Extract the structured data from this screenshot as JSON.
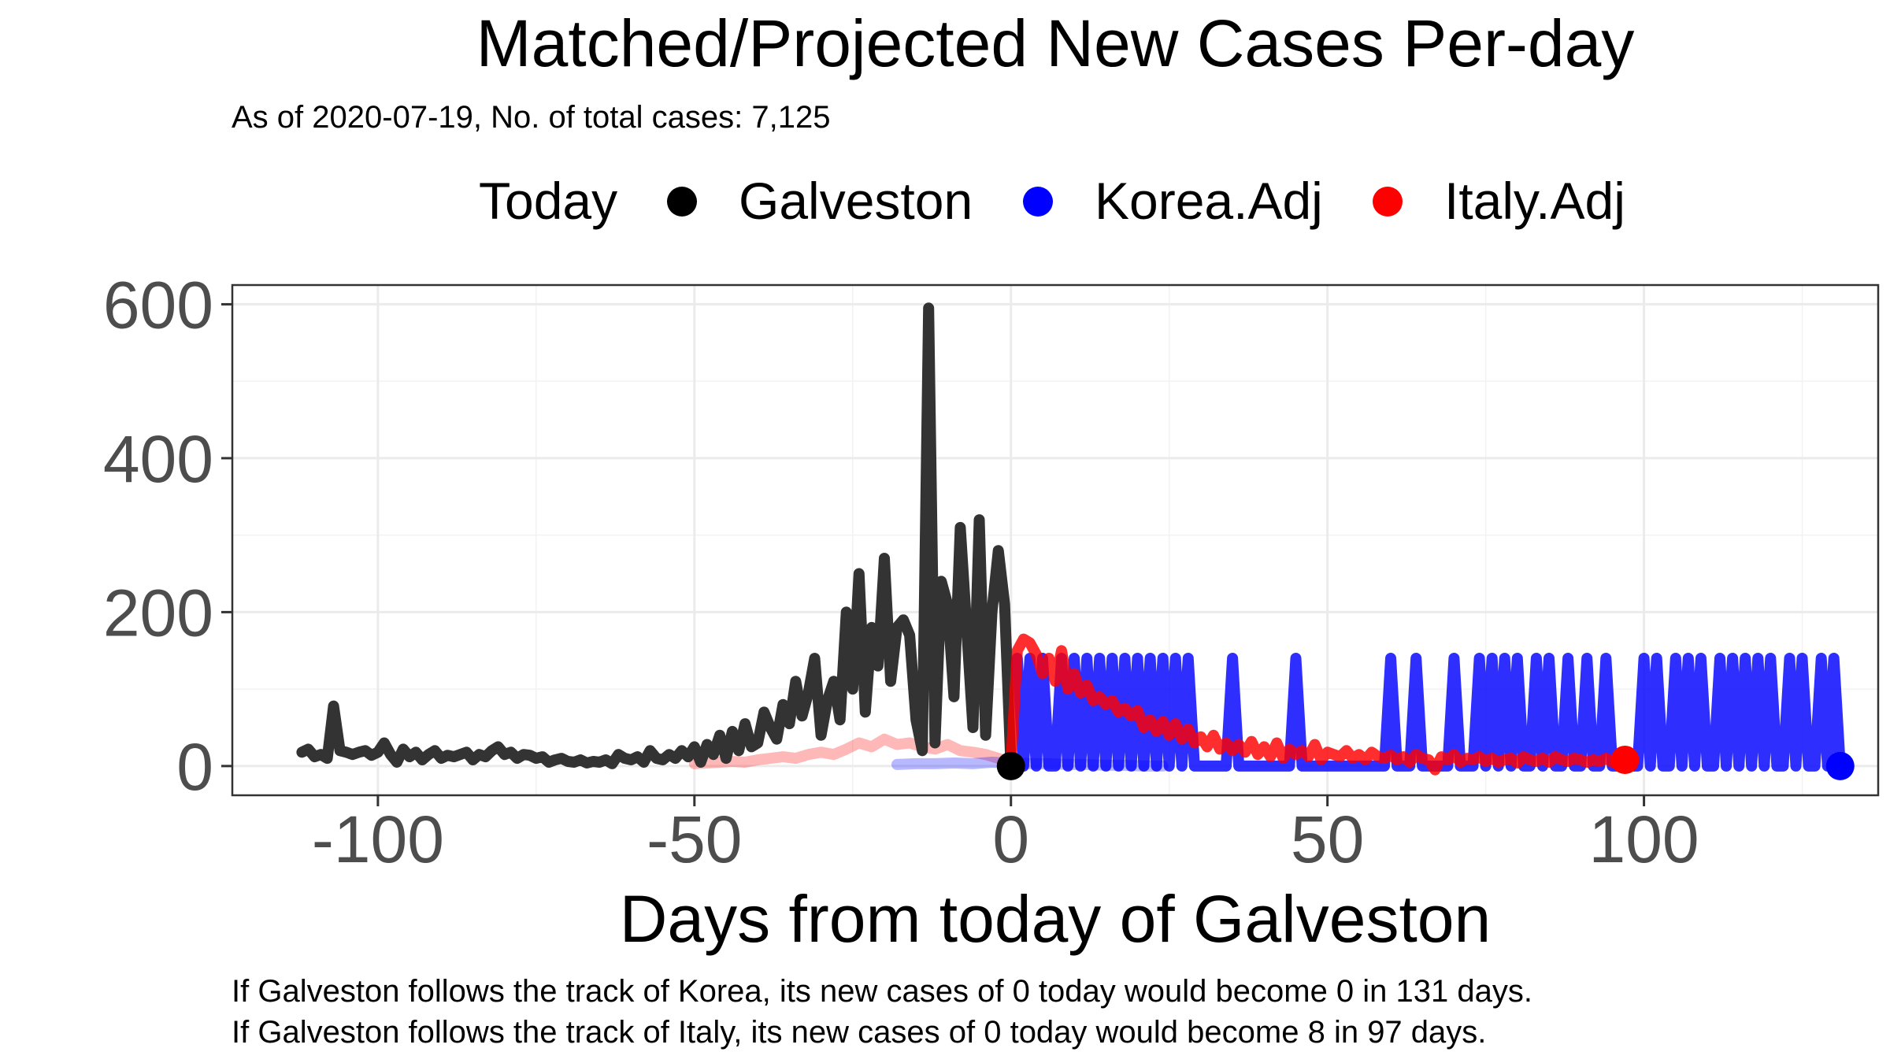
{
  "chart_data": {
    "type": "line",
    "title": "Matched/Projected New Cases Per-day",
    "subtitle": "As of 2020-07-19, No. of total cases: 7,125",
    "xlabel": "Days from today of Galveston",
    "ylabel": "",
    "xlim": [
      -123,
      137
    ],
    "ylim": [
      -38,
      625
    ],
    "x_ticks": [
      -100,
      -50,
      0,
      50,
      100
    ],
    "x_tick_labels": [
      "-100",
      "-50",
      "0",
      "50",
      "100"
    ],
    "y_ticks": [
      0,
      200,
      400,
      600
    ],
    "y_tick_labels": [
      "0",
      "200",
      "400",
      "600"
    ],
    "grid": true,
    "legend": {
      "position": "top",
      "title": "Today",
      "entries": [
        {
          "label": "Galveston",
          "color": "#000000"
        },
        {
          "label": "Korea.Adj",
          "color": "#0000ff"
        },
        {
          "label": "Italy.Adj",
          "color": "#ff0000"
        }
      ]
    },
    "series": [
      {
        "name": "Galveston",
        "color": "#333333",
        "x": [
          -112,
          -111,
          -110,
          -109,
          -108,
          -107,
          -106,
          -105,
          -104,
          -103,
          -102,
          -101,
          -100,
          -99,
          -98,
          -97,
          -96,
          -95,
          -94,
          -93,
          -92,
          -91,
          -90,
          -89,
          -88,
          -87,
          -86,
          -85,
          -84,
          -83,
          -82,
          -81,
          -80,
          -79,
          -78,
          -77,
          -76,
          -75,
          -74,
          -73,
          -72,
          -71,
          -70,
          -69,
          -68,
          -67,
          -66,
          -65,
          -64,
          -63,
          -62,
          -61,
          -60,
          -59,
          -58,
          -57,
          -56,
          -55,
          -54,
          -53,
          -52,
          -51,
          -50,
          -49,
          -48,
          -47,
          -46,
          -45,
          -44,
          -43,
          -42,
          -41,
          -40,
          -39,
          -38,
          -37,
          -36,
          -35,
          -34,
          -33,
          -32,
          -31,
          -30,
          -29,
          -28,
          -27,
          -26,
          -25,
          -24,
          -23,
          -22,
          -21,
          -20,
          -19,
          -18,
          -17,
          -16,
          -15,
          -14,
          -13,
          -12,
          -11,
          -10,
          -9,
          -8,
          -7,
          -6,
          -5,
          -4,
          -3,
          -2,
          -1,
          0
        ],
        "values": [
          18,
          22,
          12,
          15,
          10,
          78,
          20,
          18,
          15,
          18,
          20,
          14,
          18,
          30,
          15,
          5,
          22,
          12,
          18,
          8,
          15,
          20,
          10,
          14,
          12,
          15,
          18,
          8,
          15,
          12,
          20,
          25,
          15,
          18,
          10,
          15,
          14,
          10,
          12,
          5,
          8,
          10,
          6,
          5,
          8,
          4,
          6,
          5,
          8,
          3,
          15,
          10,
          8,
          12,
          5,
          20,
          10,
          8,
          15,
          10,
          20,
          12,
          25,
          5,
          28,
          15,
          40,
          10,
          45,
          20,
          55,
          25,
          30,
          70,
          50,
          35,
          80,
          55,
          110,
          65,
          95,
          140,
          40,
          85,
          110,
          60,
          200,
          100,
          250,
          70,
          180,
          130,
          270,
          110,
          180,
          190,
          170,
          60,
          20,
          595,
          30,
          240,
          210,
          90,
          310,
          180,
          50,
          320,
          40,
          200,
          280,
          210,
          0
        ],
        "mark_label_at": 0
      },
      {
        "name": "Korea.Adj",
        "color": "#0000ff",
        "x": [
          1,
          2,
          3,
          4,
          5,
          6,
          7,
          8,
          9,
          10,
          11,
          12,
          13,
          14,
          15,
          16,
          17,
          18,
          19,
          20,
          21,
          22,
          23,
          24,
          25,
          26,
          27,
          28,
          29,
          30,
          31,
          32,
          33,
          34,
          35,
          36,
          37,
          38,
          39,
          40,
          41,
          42,
          43,
          44,
          45,
          46,
          47,
          48,
          49,
          50,
          51,
          52,
          53,
          54,
          55,
          56,
          57,
          58,
          59,
          60,
          61,
          62,
          63,
          64,
          65,
          66,
          67,
          68,
          69,
          70,
          71,
          72,
          73,
          74,
          75,
          76,
          77,
          78,
          79,
          80,
          81,
          82,
          83,
          84,
          85,
          86,
          87,
          88,
          89,
          90,
          91,
          92,
          93,
          94,
          95,
          96,
          97,
          98,
          99,
          100,
          101,
          102,
          103,
          104,
          105,
          106,
          107,
          108,
          109,
          110,
          111,
          112,
          113,
          114,
          115,
          116,
          117,
          118,
          119,
          120,
          121,
          122,
          123,
          124,
          125,
          126,
          127,
          128,
          129,
          130,
          131
        ],
        "values": [
          140,
          0,
          140,
          0,
          140,
          0,
          0,
          140,
          0,
          140,
          0,
          140,
          0,
          140,
          0,
          140,
          0,
          140,
          0,
          140,
          0,
          140,
          0,
          140,
          0,
          140,
          0,
          140,
          0,
          0,
          0,
          0,
          0,
          0,
          140,
          0,
          0,
          0,
          0,
          0,
          0,
          0,
          0,
          0,
          140,
          0,
          0,
          0,
          0,
          0,
          0,
          0,
          0,
          0,
          0,
          0,
          0,
          0,
          0,
          140,
          0,
          0,
          0,
          140,
          0,
          0,
          0,
          0,
          0,
          140,
          0,
          0,
          0,
          140,
          0,
          140,
          0,
          140,
          0,
          140,
          0,
          0,
          140,
          0,
          140,
          0,
          0,
          140,
          0,
          0,
          140,
          0,
          0,
          140,
          0,
          0,
          0,
          0,
          0,
          140,
          0,
          140,
          0,
          0,
          140,
          0,
          140,
          0,
          140,
          0,
          0,
          140,
          0,
          140,
          0,
          140,
          0,
          140,
          0,
          140,
          0,
          0,
          140,
          0,
          140,
          0,
          0,
          140,
          0,
          140,
          0
        ],
        "mark_label_at": 131
      },
      {
        "name": "Italy.Adj",
        "color": "#ff0000",
        "x": [
          0,
          1,
          2,
          3,
          4,
          5,
          6,
          7,
          8,
          9,
          10,
          11,
          12,
          13,
          14,
          15,
          16,
          17,
          18,
          19,
          20,
          21,
          22,
          23,
          24,
          25,
          26,
          27,
          28,
          29,
          30,
          31,
          32,
          33,
          34,
          35,
          36,
          37,
          38,
          39,
          40,
          41,
          42,
          43,
          44,
          45,
          46,
          47,
          48,
          49,
          50,
          51,
          52,
          53,
          54,
          55,
          56,
          57,
          58,
          59,
          60,
          61,
          62,
          63,
          64,
          65,
          66,
          67,
          68,
          69,
          70,
          71,
          72,
          73,
          74,
          75,
          76,
          77,
          78,
          79,
          80,
          81,
          82,
          83,
          84,
          85,
          86,
          87,
          88,
          89,
          90,
          91,
          92,
          93,
          94,
          95,
          96,
          97
        ],
        "values": [
          0,
          150,
          165,
          160,
          145,
          120,
          140,
          110,
          150,
          100,
          120,
          95,
          105,
          85,
          90,
          80,
          85,
          70,
          75,
          65,
          72,
          50,
          60,
          45,
          58,
          40,
          55,
          35,
          48,
          30,
          38,
          25,
          40,
          22,
          30,
          20,
          28,
          18,
          32,
          15,
          25,
          12,
          30,
          10,
          22,
          15,
          20,
          12,
          28,
          8,
          18,
          15,
          12,
          20,
          10,
          15,
          8,
          18,
          12,
          10,
          14,
          8,
          12,
          5,
          15,
          10,
          8,
          -5,
          12,
          8,
          15,
          5,
          10,
          8,
          12,
          6,
          10,
          5,
          8,
          10,
          4,
          12,
          8,
          6,
          10,
          5,
          12,
          8,
          6,
          10,
          8,
          5,
          8,
          6,
          10,
          5,
          8,
          8
        ],
        "mark_label_at": 97
      },
      {
        "name": "Italy.Adj (matched)",
        "color": "#ff0000",
        "faded": true,
        "x": [
          -50,
          -48,
          -46,
          -44,
          -42,
          -40,
          -38,
          -36,
          -34,
          -32,
          -30,
          -28,
          -26,
          -24,
          -22,
          -20,
          -18,
          -16,
          -14,
          -12,
          -10,
          -8,
          -6,
          -4,
          -2,
          0
        ],
        "values": [
          3,
          4,
          5,
          6,
          5,
          8,
          10,
          12,
          10,
          15,
          18,
          15,
          22,
          30,
          25,
          35,
          28,
          30,
          25,
          22,
          28,
          20,
          18,
          15,
          10,
          5
        ]
      },
      {
        "name": "Korea.Adj (matched)",
        "color": "#0000ff",
        "faded": true,
        "x": [
          -18,
          -15,
          -12,
          -9,
          -6,
          -3,
          0,
          3,
          6,
          9,
          12,
          15,
          18,
          21,
          24
        ],
        "values": [
          2,
          3,
          3,
          4,
          3,
          5,
          4,
          3,
          3,
          2,
          2,
          1,
          1,
          0,
          0
        ]
      }
    ]
  },
  "footnote": {
    "line1": "If Galveston follows the track of Korea, its new cases of 0 today would become 0 in 131 days.",
    "line2": "If Galveston follows the track of Italy, its new cases of 0 today would become 8 in 97 days."
  }
}
